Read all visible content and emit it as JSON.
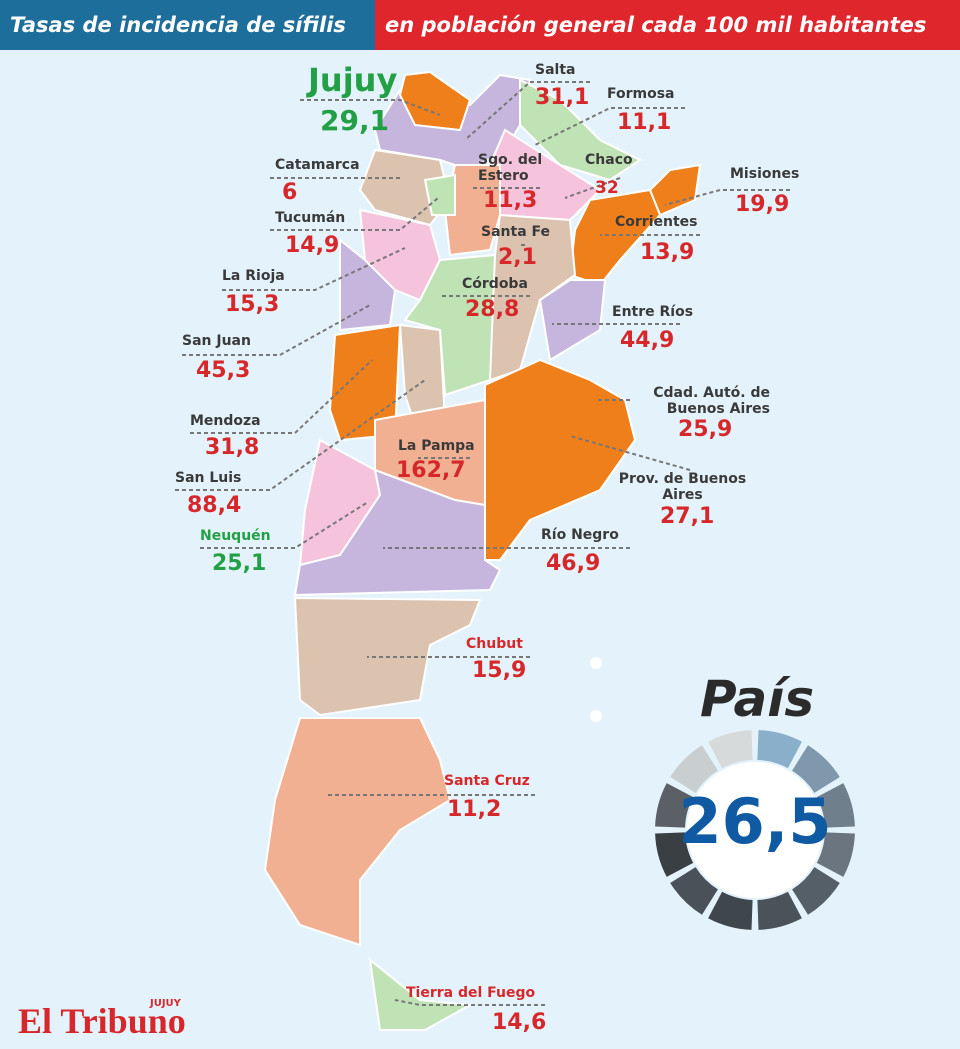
{
  "header": {
    "title": "Tasas de incidencia de sífilis",
    "subtitle": "en población general cada 100 mil habitantes"
  },
  "provinces": [
    {
      "name": "Jujuy",
      "value": "29,1"
    },
    {
      "name": "Salta",
      "value": "31,1"
    },
    {
      "name": "Formosa",
      "value": "11,1"
    },
    {
      "name": "Catamarca",
      "value": "6"
    },
    {
      "name": "Sgo. del Estero",
      "value": "11,3"
    },
    {
      "name": "Chaco",
      "value": "32"
    },
    {
      "name": "Misiones",
      "value": "19,9"
    },
    {
      "name": "Tucumán",
      "value": "14,9"
    },
    {
      "name": "Corrientes",
      "value": "13,9"
    },
    {
      "name": "Santa Fe",
      "value": "2,1"
    },
    {
      "name": "La Rioja",
      "value": "15,3"
    },
    {
      "name": "Córdoba",
      "value": "28,8"
    },
    {
      "name": "Entre Ríos",
      "value": "44,9"
    },
    {
      "name": "San Juan",
      "value": "45,3"
    },
    {
      "name": "Cdad. Autó. de Buenos Aires",
      "value": "25,9"
    },
    {
      "name": "Mendoza",
      "value": "31,8"
    },
    {
      "name": "La Pampa",
      "value": "162,7"
    },
    {
      "name": "San Luis",
      "value": "88,4"
    },
    {
      "name": "Prov. de Buenos Aires",
      "value": "27,1"
    },
    {
      "name": "Neuquén",
      "value": "25,1"
    },
    {
      "name": "Río Negro",
      "value": "46,9"
    },
    {
      "name": "Chubut",
      "value": "15,9"
    },
    {
      "name": "Santa Cruz",
      "value": "11,2"
    },
    {
      "name": "Tierra del Fuego",
      "value": "14,6"
    }
  ],
  "country": {
    "label": "País",
    "value": "26,5"
  },
  "logo": {
    "name": "El Tribuno",
    "edition": "JUJUY"
  }
}
